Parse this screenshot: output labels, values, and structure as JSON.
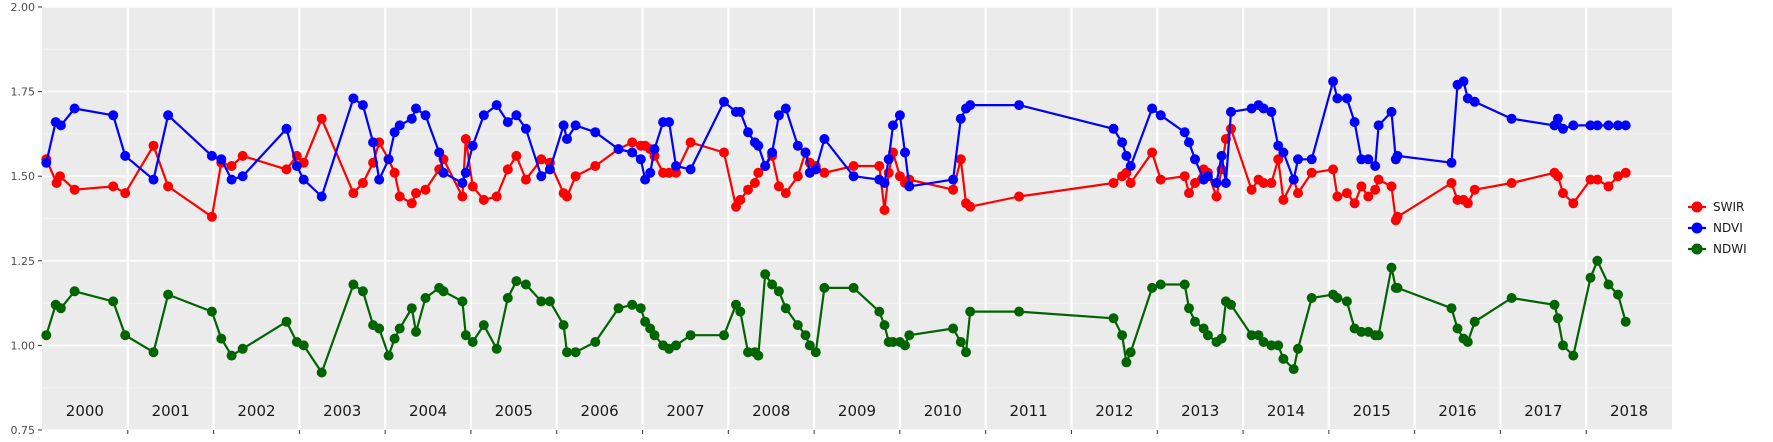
{
  "chart_data": {
    "type": "line",
    "title": "",
    "xlabel": "",
    "ylabel": "",
    "ylim": [
      0.75,
      2.0
    ],
    "y_ticks": [
      "0.75",
      "1.00",
      "1.25",
      "1.50",
      "1.75",
      "2.00"
    ],
    "xlim": [
      2000.0,
      2019.0
    ],
    "year_labels": [
      "2000",
      "2001",
      "2002",
      "2003",
      "2004",
      "2005",
      "2006",
      "2007",
      "2008",
      "2009",
      "2010",
      "2011",
      "2012",
      "2013",
      "2014",
      "2015",
      "2016",
      "2017",
      "2018"
    ],
    "grid": true,
    "legend_position": "right",
    "series": [
      {
        "name": "SWIR",
        "color": "#ff0000",
        "x": [
          2000.05,
          2000.17,
          2000.21,
          2000.38,
          2000.83,
          2000.97,
          2001.3,
          2001.47,
          2001.98,
          2002.09,
          2002.21,
          2002.34,
          2002.85,
          2002.97,
          2003.05,
          2003.26,
          2003.63,
          2003.74,
          2003.86,
          2003.93,
          2004.04,
          2004.11,
          2004.17,
          2004.31,
          2004.36,
          2004.47,
          2004.63,
          2004.68,
          2004.9,
          2004.94,
          2005.02,
          2005.15,
          2005.3,
          2005.43,
          2005.53,
          2005.64,
          2005.82,
          2005.92,
          2006.08,
          2006.12,
          2006.22,
          2006.45,
          2006.72,
          2006.88,
          2006.98,
          2007.03,
          2007.09,
          2007.14,
          2007.24,
          2007.31,
          2007.39,
          2007.56,
          2007.95,
          2008.09,
          2008.14,
          2008.23,
          2008.31,
          2008.35,
          2008.43,
          2008.51,
          2008.59,
          2008.67,
          2008.81,
          2008.9,
          2008.95,
          2009.02,
          2009.12,
          2009.46,
          2009.76,
          2009.82,
          2009.87,
          2009.92,
          2010.0,
          2010.06,
          2010.11,
          2010.62,
          2010.71,
          2010.77,
          2010.82,
          2011.39,
          2012.49,
          2012.59,
          2012.64,
          2012.69,
          2012.94,
          2013.04,
          2013.32,
          2013.37,
          2013.44,
          2013.54,
          2013.59,
          2013.69,
          2013.75,
          2013.8,
          2013.86,
          2014.1,
          2014.18,
          2014.24,
          2014.33,
          2014.41,
          2014.47,
          2014.59,
          2014.64,
          2014.8,
          2015.05,
          2015.1,
          2015.21,
          2015.3,
          2015.38,
          2015.46,
          2015.54,
          2015.58,
          2015.73,
          2015.78,
          2015.8,
          2016.43,
          2016.5,
          2016.57,
          2016.62,
          2016.7,
          2017.13,
          2017.63,
          2017.67,
          2017.73,
          2017.85,
          2018.05,
          2018.13,
          2018.26,
          2018.37,
          2018.46
        ],
        "values": [
          1.55,
          1.48,
          1.5,
          1.46,
          1.47,
          1.45,
          1.59,
          1.47,
          1.38,
          1.54,
          1.53,
          1.56,
          1.52,
          1.56,
          1.54,
          1.67,
          1.45,
          1.48,
          1.54,
          1.6,
          1.55,
          1.51,
          1.44,
          1.42,
          1.45,
          1.46,
          1.52,
          1.55,
          1.44,
          1.61,
          1.47,
          1.43,
          1.44,
          1.52,
          1.56,
          1.49,
          1.55,
          1.54,
          1.45,
          1.44,
          1.5,
          1.53,
          1.58,
          1.6,
          1.59,
          1.59,
          1.58,
          1.56,
          1.51,
          1.51,
          1.51,
          1.6,
          1.57,
          1.41,
          1.43,
          1.46,
          1.48,
          1.51,
          1.53,
          1.56,
          1.47,
          1.45,
          1.5,
          1.57,
          1.54,
          1.53,
          1.51,
          1.53,
          1.53,
          1.4,
          1.51,
          1.57,
          1.5,
          1.48,
          1.49,
          1.46,
          1.55,
          1.42,
          1.41,
          1.44,
          1.48,
          1.5,
          1.51,
          1.48,
          1.57,
          1.49,
          1.5,
          1.45,
          1.48,
          1.52,
          1.51,
          1.44,
          1.52,
          1.61,
          1.64,
          1.46,
          1.49,
          1.48,
          1.48,
          1.55,
          1.43,
          1.49,
          1.45,
          1.51,
          1.52,
          1.44,
          1.45,
          1.42,
          1.47,
          1.44,
          1.46,
          1.49,
          1.47,
          1.37,
          1.38,
          1.48,
          1.43,
          1.43,
          1.42,
          1.46,
          1.48,
          1.51,
          1.5,
          1.45,
          1.42,
          1.49,
          1.49,
          1.47,
          1.5,
          1.51
        ],
        "note": "values read from plot; x positions approximate in decimal years"
      },
      {
        "name": "NDVI",
        "color": "#0000ff",
        "x": [
          2000.05,
          2000.16,
          2000.22,
          2000.38,
          2000.83,
          2000.97,
          2001.3,
          2001.47,
          2001.98,
          2002.09,
          2002.21,
          2002.34,
          2002.85,
          2002.97,
          2003.05,
          2003.26,
          2003.63,
          2003.74,
          2003.86,
          2003.93,
          2004.04,
          2004.11,
          2004.17,
          2004.31,
          2004.36,
          2004.47,
          2004.63,
          2004.68,
          2004.9,
          2004.94,
          2005.02,
          2005.15,
          2005.3,
          2005.43,
          2005.53,
          2005.64,
          2005.82,
          2005.92,
          2006.08,
          2006.12,
          2006.22,
          2006.45,
          2006.72,
          2006.88,
          2006.98,
          2007.03,
          2007.09,
          2007.14,
          2007.24,
          2007.31,
          2007.39,
          2007.56,
          2007.95,
          2008.09,
          2008.14,
          2008.23,
          2008.31,
          2008.35,
          2008.43,
          2008.51,
          2008.59,
          2008.67,
          2008.81,
          2008.9,
          2008.95,
          2009.02,
          2009.12,
          2009.46,
          2009.76,
          2009.82,
          2009.87,
          2009.92,
          2010.0,
          2010.06,
          2010.11,
          2010.62,
          2010.71,
          2010.77,
          2010.82,
          2011.39,
          2012.49,
          2012.59,
          2012.64,
          2012.69,
          2012.94,
          2013.04,
          2013.32,
          2013.37,
          2013.44,
          2013.54,
          2013.59,
          2013.69,
          2013.75,
          2013.8,
          2013.86,
          2014.1,
          2014.18,
          2014.24,
          2014.33,
          2014.41,
          2014.47,
          2014.59,
          2014.64,
          2014.8,
          2015.05,
          2015.1,
          2015.21,
          2015.3,
          2015.38,
          2015.46,
          2015.54,
          2015.58,
          2015.73,
          2015.78,
          2015.8,
          2016.43,
          2016.5,
          2016.57,
          2016.62,
          2016.7,
          2017.13,
          2017.63,
          2017.67,
          2017.73,
          2017.85,
          2018.05,
          2018.13,
          2018.26,
          2018.37,
          2018.46
        ],
        "values": [
          1.54,
          1.66,
          1.65,
          1.7,
          1.68,
          1.56,
          1.49,
          1.68,
          1.56,
          1.55,
          1.49,
          1.5,
          1.64,
          1.53,
          1.49,
          1.44,
          1.73,
          1.71,
          1.6,
          1.49,
          1.55,
          1.63,
          1.65,
          1.67,
          1.7,
          1.68,
          1.57,
          1.51,
          1.48,
          1.51,
          1.59,
          1.68,
          1.71,
          1.66,
          1.68,
          1.64,
          1.5,
          1.52,
          1.65,
          1.61,
          1.65,
          1.63,
          1.58,
          1.57,
          1.55,
          1.49,
          1.51,
          1.58,
          1.66,
          1.66,
          1.53,
          1.52,
          1.72,
          1.69,
          1.69,
          1.63,
          1.6,
          1.59,
          1.53,
          1.57,
          1.68,
          1.7,
          1.59,
          1.57,
          1.51,
          1.52,
          1.61,
          1.5,
          1.49,
          1.48,
          1.55,
          1.65,
          1.68,
          1.57,
          1.47,
          1.49,
          1.67,
          1.7,
          1.71,
          1.71,
          1.64,
          1.6,
          1.56,
          1.53,
          1.7,
          1.68,
          1.63,
          1.6,
          1.55,
          1.49,
          1.5,
          1.48,
          1.56,
          1.48,
          1.69,
          1.7,
          1.71,
          1.7,
          1.69,
          1.59,
          1.57,
          1.49,
          1.55,
          1.55,
          1.78,
          1.73,
          1.73,
          1.66,
          1.55,
          1.55,
          1.53,
          1.65,
          1.69,
          1.55,
          1.56,
          1.54,
          1.77,
          1.78,
          1.73,
          1.72,
          1.67,
          1.65,
          1.67,
          1.64,
          1.65,
          1.65,
          1.65,
          1.65,
          1.65,
          1.65
        ],
        "note": "values read from plot; x positions approximate in decimal years"
      },
      {
        "name": "NDWI",
        "color": "#006400",
        "x": [
          2000.05,
          2000.16,
          2000.22,
          2000.38,
          2000.83,
          2000.97,
          2001.3,
          2001.47,
          2001.98,
          2002.09,
          2002.21,
          2002.34,
          2002.85,
          2002.97,
          2003.05,
          2003.26,
          2003.63,
          2003.74,
          2003.86,
          2003.93,
          2004.04,
          2004.11,
          2004.17,
          2004.31,
          2004.36,
          2004.47,
          2004.63,
          2004.68,
          2004.9,
          2004.94,
          2005.02,
          2005.15,
          2005.3,
          2005.43,
          2005.53,
          2005.64,
          2005.82,
          2005.92,
          2006.08,
          2006.12,
          2006.22,
          2006.45,
          2006.72,
          2006.88,
          2006.98,
          2007.03,
          2007.09,
          2007.14,
          2007.24,
          2007.31,
          2007.39,
          2007.56,
          2007.95,
          2008.09,
          2008.14,
          2008.23,
          2008.31,
          2008.35,
          2008.43,
          2008.51,
          2008.59,
          2008.67,
          2008.81,
          2008.9,
          2008.95,
          2009.02,
          2009.12,
          2009.46,
          2009.76,
          2009.82,
          2009.87,
          2009.92,
          2010.0,
          2010.06,
          2010.11,
          2010.62,
          2010.71,
          2010.77,
          2010.82,
          2011.39,
          2012.49,
          2012.59,
          2012.64,
          2012.69,
          2012.94,
          2013.04,
          2013.32,
          2013.37,
          2013.44,
          2013.54,
          2013.59,
          2013.69,
          2013.75,
          2013.8,
          2013.86,
          2014.1,
          2014.18,
          2014.24,
          2014.33,
          2014.41,
          2014.47,
          2014.59,
          2014.64,
          2014.8,
          2015.05,
          2015.1,
          2015.21,
          2015.3,
          2015.38,
          2015.46,
          2015.54,
          2015.58,
          2015.73,
          2015.78,
          2015.8,
          2016.43,
          2016.5,
          2016.57,
          2016.62,
          2016.7,
          2017.13,
          2017.63,
          2017.67,
          2017.73,
          2017.85,
          2018.05,
          2018.13,
          2018.26,
          2018.37,
          2018.46
        ],
        "values": [
          1.03,
          1.12,
          1.11,
          1.16,
          1.13,
          1.03,
          0.98,
          1.15,
          1.1,
          1.02,
          0.97,
          0.99,
          1.07,
          1.01,
          1.0,
          0.92,
          1.18,
          1.16,
          1.06,
          1.05,
          0.97,
          1.02,
          1.05,
          1.11,
          1.04,
          1.14,
          1.17,
          1.16,
          1.13,
          1.03,
          1.01,
          1.06,
          0.99,
          1.14,
          1.19,
          1.18,
          1.13,
          1.13,
          1.06,
          0.98,
          0.98,
          1.01,
          1.11,
          1.12,
          1.11,
          1.07,
          1.05,
          1.03,
          1.0,
          0.99,
          1.0,
          1.03,
          1.03,
          1.12,
          1.1,
          0.98,
          0.98,
          0.97,
          1.21,
          1.18,
          1.16,
          1.11,
          1.06,
          1.03,
          1.0,
          0.98,
          1.17,
          1.17,
          1.1,
          1.06,
          1.01,
          1.01,
          1.01,
          1.0,
          1.03,
          1.05,
          1.01,
          0.98,
          1.1,
          1.1,
          1.08,
          1.03,
          0.95,
          0.98,
          1.17,
          1.18,
          1.18,
          1.11,
          1.07,
          1.05,
          1.03,
          1.01,
          1.02,
          1.13,
          1.12,
          1.03,
          1.03,
          1.01,
          1.0,
          1.0,
          0.96,
          0.93,
          0.99,
          1.14,
          1.15,
          1.14,
          1.13,
          1.05,
          1.04,
          1.04,
          1.03,
          1.03,
          1.23,
          1.17,
          1.17,
          1.11,
          1.05,
          1.02,
          1.01,
          1.07,
          1.14,
          1.12,
          1.08,
          1.0,
          0.97,
          1.2,
          1.25,
          1.18,
          1.15,
          1.07
        ],
        "note": "values read from plot; x positions approximate in decimal years"
      }
    ]
  }
}
